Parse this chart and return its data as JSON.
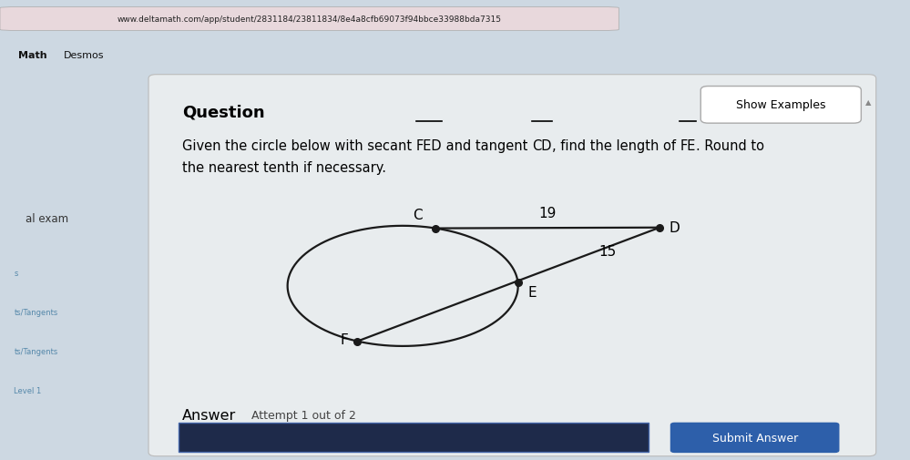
{
  "url_text": "www.deltamath.com/app/student/2831184/23811834/8e4a8cfb69073f94bbce33988bda7315",
  "browser_bar_color": "#c8607a",
  "tab_bar_color": "#d4708a",
  "tab_text": "Math",
  "tab_text2": "Desmos",
  "sidebar_color": "#c0ccda",
  "main_bg_color": "#cdd8e2",
  "panel_bg_color": "#e8ecee",
  "title_text": "Question",
  "show_examples_text": "Show Examples",
  "text_part1": "Given the circle below with secant ",
  "text_FED": "FED",
  "text_part2": " and tangent ",
  "text_CD": "CD",
  "text_part3": ", find the length of ",
  "text_FE": "FE",
  "text_part4": ". Round to",
  "text_line2": "the nearest tenth if necessary.",
  "answer_label": "Answer",
  "attempt_text": "Attempt 1 out of 2",
  "submit_text": "Submit Answer",
  "label_C": "C",
  "label_D": "D",
  "label_E": "E",
  "label_F": "F",
  "label_19": "19",
  "label_15": "15",
  "label_al_exam": "al exam",
  "point_C": [
    0.395,
    0.595
  ],
  "point_D": [
    0.695,
    0.597
  ],
  "point_E": [
    0.505,
    0.455
  ],
  "point_F": [
    0.29,
    0.305
  ],
  "line_color": "#1a1a1a",
  "dot_color": "#1a1a1a",
  "input_box_color": "#1e2a4a",
  "submit_btn_color": "#2d5faa",
  "sidebar_text_items": [
    "s",
    "ts/Tangents",
    "ts/Tangents",
    "Level 1"
  ]
}
